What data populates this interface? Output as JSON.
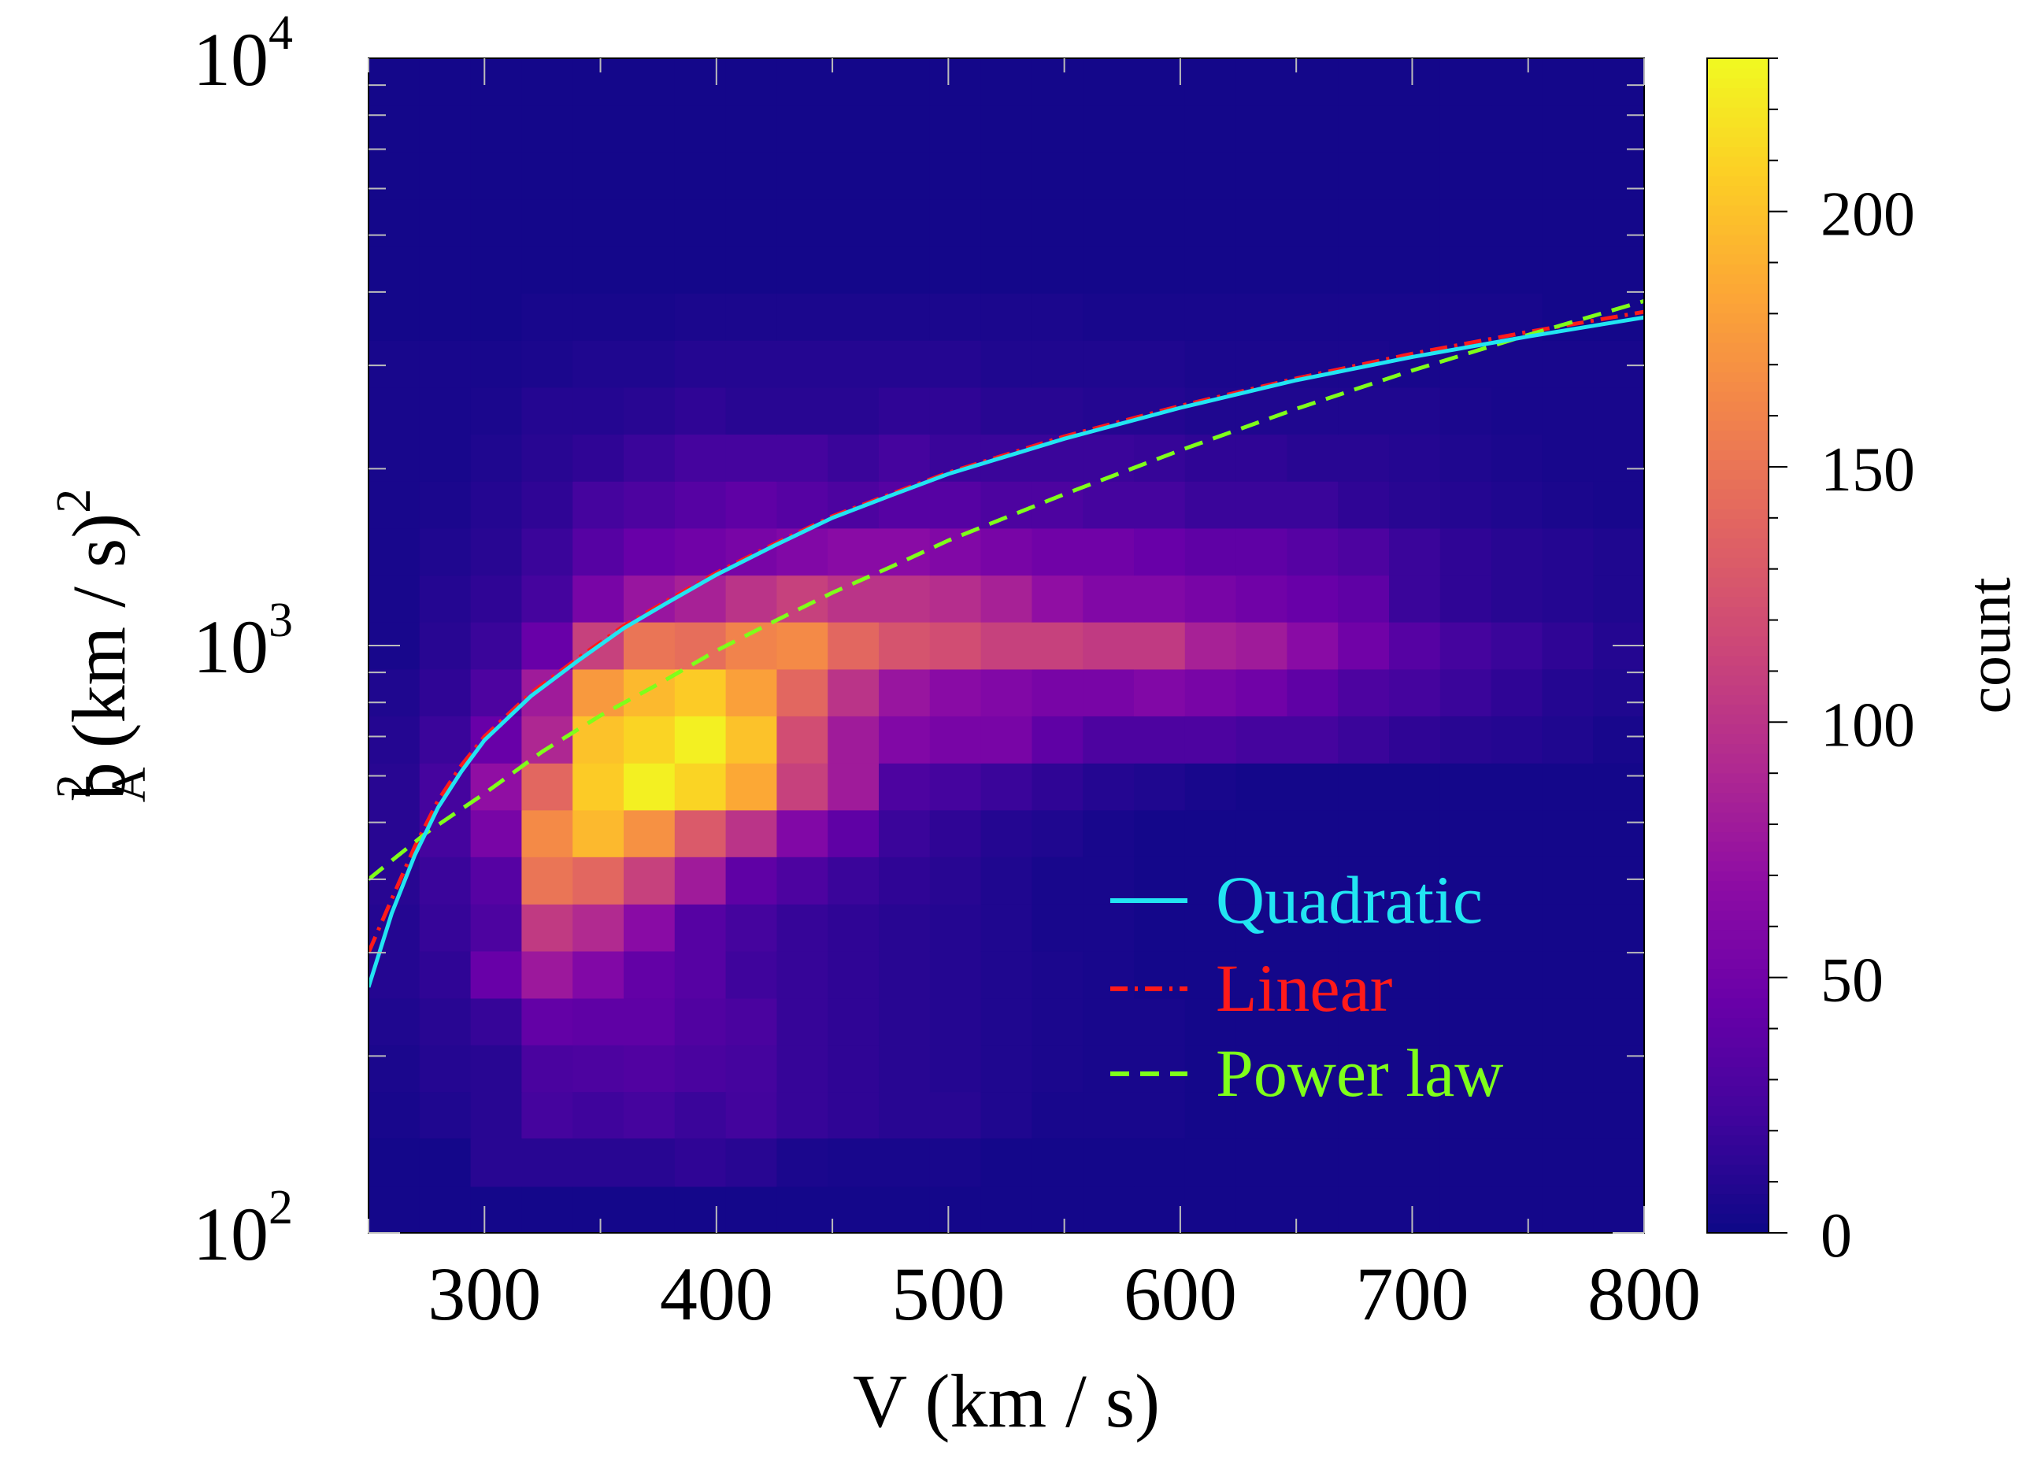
{
  "chart_data": {
    "type": "heatmap",
    "title": "",
    "xlabel": "V (km / s)",
    "ylabel_base": "b",
    "ylabel_sup": "2",
    "ylabel_sub": "A",
    "ylabel_rest": " (km / s)",
    "ylabel_rest_sup": "2",
    "x_range": [
      250,
      800
    ],
    "x_ticks": [
      {
        "value": 300,
        "label": "300"
      },
      {
        "value": 400,
        "label": "400"
      },
      {
        "value": 500,
        "label": "500"
      },
      {
        "value": 600,
        "label": "600"
      },
      {
        "value": 700,
        "label": "700"
      },
      {
        "value": 800,
        "label": "800"
      }
    ],
    "y_scale": "log",
    "y_range": [
      100,
      10000
    ],
    "y_ticks": [
      {
        "value": 100,
        "base": "10",
        "exp": "2"
      },
      {
        "value": 1000,
        "base": "10",
        "exp": "3"
      },
      {
        "value": 10000,
        "base": "10",
        "exp": "4"
      }
    ],
    "colorbar": {
      "label": "count",
      "range": [
        0,
        230
      ],
      "ticks": [
        {
          "value": 0,
          "label": "0"
        },
        {
          "value": 50,
          "label": "50"
        },
        {
          "value": 100,
          "label": "100"
        },
        {
          "value": 150,
          "label": "150"
        },
        {
          "value": 200,
          "label": "200"
        }
      ]
    },
    "colormap": "plasma",
    "heatmap": {
      "x_edges": [
        250,
        272,
        294,
        316,
        338,
        360,
        382,
        404,
        426,
        448,
        470,
        492,
        514,
        536,
        558,
        580,
        602,
        624,
        646,
        668,
        690,
        712,
        734,
        756,
        778,
        800
      ],
      "y_edges": [
        100,
        120,
        145,
        174,
        209,
        251,
        302,
        363,
        437,
        525,
        631,
        759,
        912,
        1097,
        1318,
        1585,
        1905,
        2291,
        2754,
        3311,
        3981,
        4786,
        5754,
        6918,
        8318,
        10000
      ],
      "counts": [
        [
          3,
          3,
          3,
          3,
          3,
          3,
          3,
          3,
          3,
          3,
          3,
          3,
          3,
          3,
          3,
          3,
          3,
          3,
          3,
          3,
          3,
          3,
          3,
          3,
          3
        ],
        [
          3,
          3,
          12,
          12,
          12,
          12,
          15,
          12,
          6,
          5,
          5,
          5,
          3,
          3,
          3,
          3,
          3,
          3,
          3,
          3,
          3,
          3,
          3,
          3,
          3
        ],
        [
          5,
          8,
          12,
          25,
          22,
          25,
          20,
          24,
          18,
          15,
          12,
          12,
          8,
          5,
          5,
          5,
          3,
          3,
          3,
          3,
          3,
          3,
          3,
          3,
          3
        ],
        [
          6,
          10,
          12,
          28,
          30,
          32,
          28,
          25,
          18,
          15,
          12,
          10,
          8,
          6,
          5,
          5,
          3,
          3,
          3,
          3,
          3,
          3,
          3,
          3,
          3
        ],
        [
          8,
          12,
          18,
          42,
          40,
          40,
          32,
          28,
          18,
          15,
          12,
          10,
          8,
          6,
          5,
          5,
          3,
          3,
          3,
          3,
          3,
          3,
          3,
          3,
          3
        ],
        [
          10,
          15,
          45,
          78,
          60,
          42,
          35,
          22,
          18,
          15,
          12,
          10,
          8,
          6,
          5,
          3,
          3,
          3,
          3,
          3,
          3,
          3,
          3,
          3,
          3
        ],
        [
          10,
          18,
          30,
          105,
          92,
          65,
          35,
          25,
          18,
          15,
          12,
          10,
          8,
          5,
          5,
          3,
          3,
          3,
          3,
          3,
          3,
          3,
          3,
          3,
          3
        ],
        [
          12,
          20,
          35,
          150,
          140,
          110,
          80,
          40,
          30,
          20,
          15,
          12,
          8,
          5,
          5,
          3,
          3,
          3,
          3,
          3,
          3,
          3,
          3,
          3,
          3
        ],
        [
          12,
          25,
          55,
          165,
          195,
          170,
          130,
          100,
          60,
          40,
          20,
          15,
          10,
          8,
          5,
          3,
          3,
          3,
          3,
          3,
          3,
          3,
          3,
          3,
          3
        ],
        [
          12,
          25,
          70,
          140,
          205,
          225,
          210,
          185,
          110,
          80,
          30,
          25,
          20,
          15,
          10,
          8,
          5,
          3,
          3,
          3,
          3,
          3,
          3,
          3,
          3
        ],
        [
          10,
          20,
          45,
          90,
          200,
          210,
          225,
          200,
          120,
          80,
          60,
          55,
          55,
          40,
          30,
          30,
          30,
          25,
          25,
          20,
          15,
          12,
          10,
          8,
          5
        ],
        [
          8,
          15,
          30,
          80,
          175,
          195,
          205,
          180,
          140,
          100,
          75,
          65,
          60,
          55,
          55,
          60,
          55,
          50,
          40,
          30,
          25,
          20,
          15,
          10,
          8
        ],
        [
          5,
          12,
          20,
          45,
          110,
          150,
          145,
          160,
          165,
          140,
          125,
          120,
          110,
          110,
          105,
          105,
          85,
          80,
          65,
          50,
          35,
          25,
          20,
          15,
          10
        ],
        [
          5,
          10,
          15,
          25,
          55,
          75,
          85,
          100,
          110,
          100,
          100,
          95,
          85,
          70,
          60,
          60,
          55,
          50,
          45,
          40,
          20,
          15,
          12,
          10,
          8
        ],
        [
          5,
          8,
          12,
          20,
          35,
          45,
          50,
          55,
          60,
          65,
          65,
          60,
          55,
          50,
          50,
          45,
          40,
          40,
          35,
          30,
          20,
          15,
          12,
          10,
          8
        ],
        [
          5,
          6,
          10,
          15,
          25,
          30,
          35,
          40,
          35,
          30,
          35,
          35,
          30,
          30,
          25,
          25,
          20,
          20,
          20,
          15,
          12,
          10,
          8,
          6,
          5
        ],
        [
          5,
          5,
          8,
          12,
          15,
          20,
          25,
          25,
          25,
          20,
          25,
          20,
          20,
          20,
          20,
          18,
          15,
          15,
          12,
          12,
          10,
          8,
          6,
          5,
          5
        ],
        [
          5,
          5,
          6,
          10,
          10,
          12,
          15,
          12,
          12,
          12,
          15,
          15,
          12,
          12,
          10,
          10,
          8,
          8,
          8,
          8,
          8,
          6,
          5,
          5,
          5
        ],
        [
          5,
          5,
          5,
          6,
          8,
          8,
          10,
          10,
          10,
          10,
          10,
          10,
          8,
          8,
          8,
          8,
          6,
          6,
          6,
          6,
          5,
          5,
          5,
          5,
          5
        ],
        [
          3,
          3,
          3,
          5,
          5,
          5,
          6,
          6,
          6,
          6,
          6,
          6,
          6,
          6,
          5,
          5,
          5,
          5,
          5,
          5,
          5,
          5,
          5,
          3,
          3
        ],
        [
          3,
          3,
          3,
          3,
          3,
          3,
          3,
          3,
          3,
          3,
          3,
          3,
          3,
          3,
          3,
          3,
          3,
          3,
          3,
          3,
          3,
          3,
          3,
          3,
          3
        ],
        [
          3,
          3,
          3,
          3,
          3,
          3,
          3,
          3,
          3,
          3,
          3,
          3,
          3,
          3,
          3,
          3,
          3,
          3,
          3,
          3,
          3,
          3,
          3,
          3,
          3
        ],
        [
          3,
          3,
          3,
          3,
          3,
          3,
          3,
          3,
          3,
          3,
          3,
          3,
          3,
          3,
          3,
          3,
          3,
          3,
          3,
          3,
          3,
          3,
          3,
          3,
          3
        ],
        [
          3,
          3,
          3,
          3,
          3,
          3,
          3,
          3,
          3,
          3,
          3,
          3,
          3,
          3,
          3,
          3,
          3,
          3,
          3,
          3,
          3,
          3,
          3,
          3,
          3
        ],
        [
          3,
          3,
          3,
          3,
          3,
          3,
          3,
          3,
          3,
          3,
          3,
          3,
          3,
          3,
          3,
          3,
          3,
          3,
          3,
          3,
          3,
          3,
          3,
          3,
          3
        ]
      ]
    },
    "series": [
      {
        "name": "Quadratic",
        "color": "#22e5f2",
        "style": "solid",
        "x": [
          250,
          260,
          270,
          280,
          290,
          300,
          320,
          340,
          360,
          380,
          400,
          425,
          450,
          475,
          500,
          550,
          600,
          650,
          700,
          750,
          800
        ],
        "y": [
          262,
          350,
          440,
          530,
          610,
          690,
          820,
          940,
          1070,
          1190,
          1320,
          1480,
          1650,
          1800,
          1960,
          2250,
          2540,
          2830,
          3100,
          3360,
          3620
        ]
      },
      {
        "name": "Linear",
        "color": "#ff1a1a",
        "style": "dashdot",
        "x": [
          250,
          260,
          270,
          280,
          290,
          300,
          320,
          340,
          360,
          380,
          400,
          425,
          450,
          475,
          500,
          550,
          600,
          650,
          700,
          750,
          800
        ],
        "y": [
          300,
          370,
          455,
          545,
          625,
          700,
          830,
          950,
          1080,
          1200,
          1330,
          1490,
          1660,
          1810,
          1970,
          2270,
          2560,
          2850,
          3140,
          3420,
          3700
        ]
      },
      {
        "name": "Power law",
        "color": "#7fff1a",
        "style": "dashed",
        "x": [
          250,
          275,
          300,
          325,
          350,
          375,
          400,
          425,
          450,
          475,
          500,
          550,
          600,
          650,
          700,
          750,
          800
        ],
        "y": [
          400,
          480,
          560,
          660,
          760,
          860,
          980,
          1100,
          1230,
          1360,
          1510,
          1810,
          2150,
          2530,
          2940,
          3380,
          3860
        ]
      }
    ],
    "legend_position": "lower-right"
  }
}
